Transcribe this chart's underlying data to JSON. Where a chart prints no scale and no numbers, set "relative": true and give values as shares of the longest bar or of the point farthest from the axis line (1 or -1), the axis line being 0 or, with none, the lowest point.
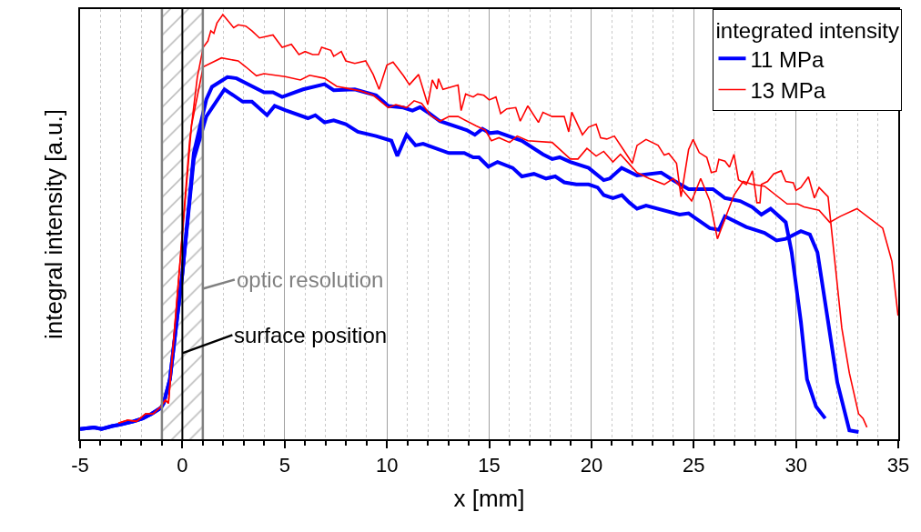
{
  "chart_data": {
    "type": "line",
    "xlabel": "x [mm]",
    "ylabel": "integral intensity [a.u.]",
    "legend_title": "integrated intensity",
    "relative": true,
    "xlim": [
      -5,
      35
    ],
    "xticks": [
      -5,
      0,
      5,
      10,
      15,
      20,
      25,
      30,
      35
    ],
    "grid": "x",
    "legend": "top right",
    "line_style": "solid",
    "series": [
      {
        "name": "11 MPa",
        "color": "#0000ff",
        "x": [
          -5.0,
          -4.32,
          -3.95,
          -3.43,
          -2.98,
          -2.39,
          -1.94,
          -1.5,
          -1.05,
          -0.91,
          -0.61,
          0.0,
          0.56,
          1.17,
          1.45,
          2.2,
          2.65,
          3.99,
          4.43,
          4.88,
          5.9,
          6.95,
          7.4,
          8.43,
          9.47,
          10.07,
          10.8,
          11.25,
          11.62,
          12.0,
          12.59,
          13.9,
          14.3,
          14.67,
          15.03,
          15.41,
          16.6,
          17.63,
          18.08,
          18.45,
          18.97,
          19.86,
          20.6,
          20.9,
          21.48,
          22.23,
          23.41,
          24.0,
          24.75,
          25.94,
          26.53,
          27.27,
          27.86,
          28.31,
          28.76,
          29.5,
          29.79,
          30.24,
          30.54,
          30.98,
          31.43
        ],
        "values": [
          0.024,
          0.028,
          0.024,
          0.031,
          0.035,
          0.042,
          0.049,
          0.06,
          0.074,
          0.085,
          0.141,
          0.39,
          0.674,
          0.8,
          0.83,
          0.853,
          0.85,
          0.817,
          0.817,
          0.806,
          0.824,
          0.836,
          0.822,
          0.824,
          0.81,
          0.785,
          0.781,
          0.774,
          0.782,
          0.77,
          0.749,
          0.728,
          0.717,
          0.731,
          0.721,
          0.723,
          0.703,
          0.671,
          0.66,
          0.664,
          0.653,
          0.639,
          0.61,
          0.614,
          0.639,
          0.621,
          0.628,
          0.61,
          0.589,
          0.589,
          0.568,
          0.561,
          0.547,
          0.529,
          0.543,
          0.511,
          0.44,
          0.277,
          0.141,
          0.077,
          0.049
        ]
      },
      {
        "color": "#0000ff",
        "x": [
          -5.0,
          -4.32,
          -3.95,
          -3.43,
          -2.98,
          -2.39,
          -1.94,
          -1.5,
          -1.05,
          -0.91,
          -0.61,
          0.0,
          0.56,
          1.17,
          2.06,
          2.95,
          3.4,
          4.14,
          4.51,
          5.03,
          6.14,
          6.5,
          6.95,
          7.4,
          7.99,
          8.58,
          9.47,
          10.22,
          10.51,
          10.96,
          11.4,
          11.77,
          13.03,
          13.78,
          14.22,
          14.5,
          14.96,
          15.41,
          16.15,
          16.6,
          17.19,
          17.78,
          18.23,
          18.67,
          19.26,
          19.86,
          20.3,
          20.6,
          21.05,
          21.49,
          21.86,
          22.23,
          22.67,
          24.31,
          24.75,
          25.79,
          26.23,
          26.53,
          27.57,
          28.46,
          29.05,
          29.5,
          30.24,
          30.68,
          31.05,
          31.57,
          32.02,
          32.61,
          33.06
        ],
        "values": [
          0.024,
          0.028,
          0.024,
          0.031,
          0.035,
          0.042,
          0.049,
          0.06,
          0.074,
          0.085,
          0.141,
          0.39,
          0.66,
          0.76,
          0.824,
          0.795,
          0.795,
          0.763,
          0.785,
          0.775,
          0.756,
          0.763,
          0.746,
          0.751,
          0.742,
          0.724,
          0.714,
          0.703,
          0.667,
          0.717,
          0.692,
          0.696,
          0.674,
          0.674,
          0.664,
          0.664,
          0.642,
          0.653,
          0.639,
          0.619,
          0.625,
          0.614,
          0.619,
          0.605,
          0.6,
          0.6,
          0.593,
          0.575,
          0.568,
          0.575,
          0.557,
          0.543,
          0.55,
          0.529,
          0.532,
          0.497,
          0.493,
          0.525,
          0.5,
          0.486,
          0.468,
          0.472,
          0.49,
          0.482,
          0.44,
          0.277,
          0.134,
          0.021,
          0.017
        ]
      },
      {
        "name": "13 MPa",
        "color": "#ff0000",
        "x": [
          -3.13,
          -2.68,
          -2.24,
          -1.8,
          -1.43,
          -1.05,
          -0.83,
          -0.68,
          -0.16,
          0.35,
          0.73,
          1.02,
          1.25,
          1.39,
          1.54,
          1.69,
          1.98,
          2.51,
          2.73,
          3.1,
          3.4,
          3.77,
          4.43,
          4.88,
          5.33,
          5.7,
          6.0,
          6.37,
          6.66,
          6.81,
          7.26,
          7.4,
          7.77,
          7.99,
          8.43,
          8.96,
          9.33,
          9.62,
          10.0,
          10.3,
          10.81,
          11.1,
          11.55,
          12.0,
          12.22,
          12.45,
          12.52,
          12.74,
          13.48,
          13.63,
          13.85,
          14.22,
          14.44,
          14.74,
          15.0,
          15.33,
          15.56,
          15.86,
          16.3,
          16.52,
          16.89,
          17.41,
          17.63,
          18.08,
          18.67,
          18.89,
          19.04,
          19.56,
          19.86,
          20.23,
          20.45,
          20.75,
          21.12,
          21.56,
          22.0,
          22.23,
          22.67,
          23.26,
          23.56,
          23.78,
          24.16,
          24.38,
          24.75,
          24.97,
          25.27,
          25.64,
          25.86,
          26.1,
          26.23,
          26.53,
          26.75,
          26.97,
          27.19,
          27.57,
          27.87,
          28.09,
          28.24,
          28.31,
          28.61,
          28.91,
          29.28,
          29.5,
          29.87,
          30.0,
          30.24,
          30.61,
          30.9,
          31.13,
          31.57,
          32.24,
          32.61,
          33.06,
          33.28,
          33.47
        ],
        "values": [
          0.038,
          0.045,
          0.042,
          0.06,
          0.06,
          0.077,
          0.092,
          0.085,
          0.39,
          0.7,
          0.852,
          0.923,
          0.938,
          0.962,
          0.956,
          0.98,
          1.0,
          0.969,
          0.976,
          0.973,
          0.962,
          0.945,
          0.952,
          0.923,
          0.93,
          0.906,
          0.913,
          0.906,
          0.906,
          0.923,
          0.916,
          0.902,
          0.913,
          0.891,
          0.885,
          0.891,
          0.859,
          0.824,
          0.881,
          0.888,
          0.856,
          0.835,
          0.859,
          0.788,
          0.846,
          0.825,
          0.849,
          0.824,
          0.834,
          0.774,
          0.813,
          0.806,
          0.813,
          0.81,
          0.799,
          0.806,
          0.767,
          0.778,
          0.781,
          0.749,
          0.785,
          0.746,
          0.77,
          0.76,
          0.76,
          0.724,
          0.77,
          0.717,
          0.735,
          0.742,
          0.71,
          0.707,
          0.714,
          0.682,
          0.65,
          0.692,
          0.706,
          0.692,
          0.669,
          0.673,
          0.65,
          0.571,
          0.682,
          0.706,
          0.675,
          0.664,
          0.628,
          0.631,
          0.659,
          0.655,
          0.641,
          0.671,
          0.611,
          0.6,
          0.632,
          0.557,
          0.557,
          0.6,
          0.607,
          0.625,
          0.632,
          0.607,
          0.604,
          0.586,
          0.593,
          0.618,
          0.568,
          0.593,
          0.571,
          0.262,
          0.156,
          0.06,
          0.049,
          0.028
        ]
      },
      {
        "color": "#ff0000",
        "x": [
          -3.13,
          -2.68,
          -2.24,
          -1.8,
          -1.43,
          -1.05,
          -0.83,
          -0.68,
          -0.16,
          0.45,
          1.02,
          1.91,
          2.73,
          3.1,
          3.62,
          3.99,
          5.03,
          5.77,
          6.22,
          6.95,
          7.55,
          8.0,
          8.73,
          9.33,
          10.07,
          10.44,
          10.96,
          11.33,
          11.7,
          12.15,
          12.59,
          13.04,
          13.48,
          14.37,
          14.81,
          15.11,
          15.48,
          16.0,
          16.37,
          16.89,
          18.08,
          18.97,
          19.34,
          19.78,
          20.23,
          20.6,
          21.05,
          21.42,
          22.23,
          22.82,
          23.56,
          24.0,
          24.9,
          25.34,
          25.79,
          26.16,
          26.97,
          27.42,
          27.87,
          28.46,
          29.57,
          30.09,
          30.39,
          31.13,
          31.65,
          32.17,
          32.98,
          34.24,
          34.69,
          34.99
        ],
        "values": [
          0.038,
          0.045,
          0.042,
          0.06,
          0.06,
          0.077,
          0.092,
          0.085,
          0.39,
          0.74,
          0.877,
          0.898,
          0.891,
          0.877,
          0.856,
          0.861,
          0.854,
          0.846,
          0.857,
          0.85,
          0.831,
          0.827,
          0.82,
          0.81,
          0.781,
          0.788,
          0.781,
          0.797,
          0.791,
          0.762,
          0.749,
          0.76,
          0.76,
          0.738,
          0.728,
          0.703,
          0.71,
          0.699,
          0.714,
          0.703,
          0.699,
          0.66,
          0.66,
          0.685,
          0.667,
          0.678,
          0.653,
          0.671,
          0.628,
          0.614,
          0.6,
          0.614,
          0.561,
          0.614,
          0.561,
          0.472,
          0.575,
          0.607,
          0.6,
          0.596,
          0.554,
          0.554,
          0.547,
          0.539,
          0.511,
          0.525,
          0.543,
          0.497,
          0.419,
          0.291
        ]
      }
    ],
    "ref_lines": [
      {
        "axis": "x",
        "value": 0,
        "label": "surface position",
        "color": "#000000"
      },
      {
        "axis": "x",
        "value": -1,
        "color": "#808080"
      },
      {
        "axis": "x",
        "value": 1,
        "color": "#808080"
      }
    ],
    "bands": [
      {
        "axis": "x",
        "from": -1,
        "to": 1,
        "label": "optic resolution",
        "color": "#808080"
      }
    ]
  }
}
